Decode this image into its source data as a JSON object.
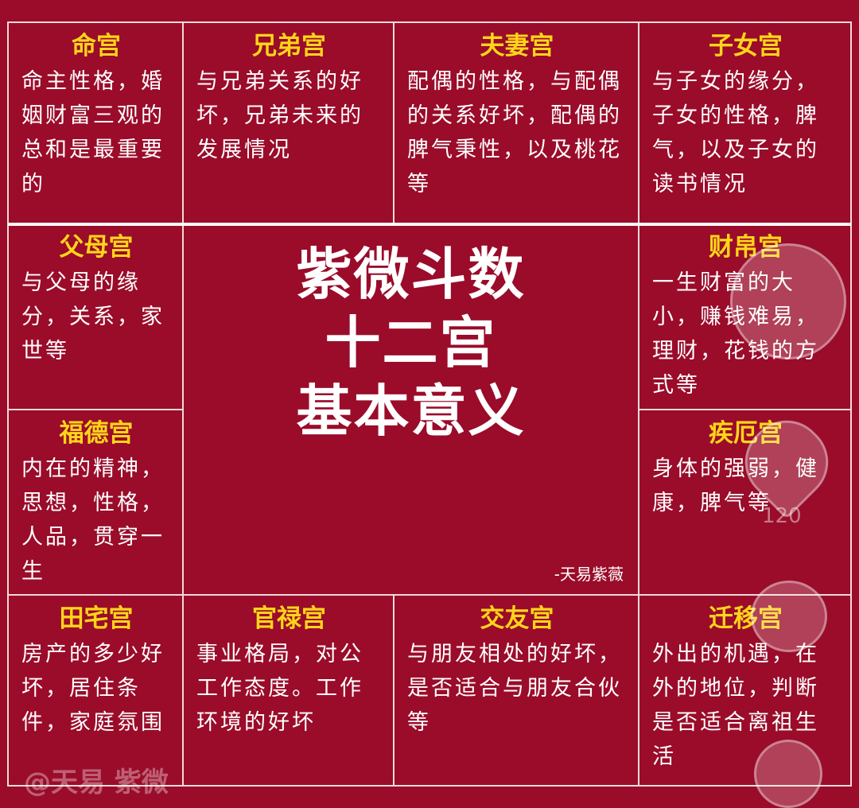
{
  "palaces": [
    {
      "title": "命宫",
      "desc": "命主性格，婚姻财富三观的总和是最重要的"
    },
    {
      "title": "兄弟宫",
      "desc": "与兄弟关系的好坏，兄弟未来的发展情况"
    },
    {
      "title": "夫妻宫",
      "desc": "配偶的性格，与配偶的关系好坏，配偶的脾气秉性，以及桃花等"
    },
    {
      "title": "子女宫",
      "desc": "与子女的缘分，子女的性格，脾气，以及子女的读书情况"
    },
    {
      "title": "父母宫",
      "desc": "与父母的缘分，关系，家世等"
    },
    {
      "title": "财帛宫",
      "desc": "一生财富的大小，赚钱难易，理财，花钱的方式等"
    },
    {
      "title": "福德宫",
      "desc": "内在的精神，思想，性格，人品，贯穿一生"
    },
    {
      "title": "疾厄宫",
      "desc": "身体的强弱，健康，脾气等"
    },
    {
      "title": "田宅宫",
      "desc": "房产的多少好坏，居住条件，家庭氛围"
    },
    {
      "title": "官禄宫",
      "desc": "事业格局，对公工作态度。工作环境的好坏"
    },
    {
      "title": "交友宫",
      "desc": "与朋友相处的好坏，是否适合与朋友合伙等"
    },
    {
      "title": "迁移宫",
      "desc": "外出的机遇，在外的地位，判断是否适合离祖生活"
    }
  ],
  "center": {
    "line1": "紫微斗数",
    "line2": "十二宫",
    "line3": "基本意义",
    "signature": "-天易紫薇"
  },
  "overlay": {
    "like_count": "120",
    "watermark": "@天易 紫微"
  },
  "colors": {
    "background": "#9a0c2a",
    "title": "#ffd51a",
    "text": "#ffffff"
  }
}
